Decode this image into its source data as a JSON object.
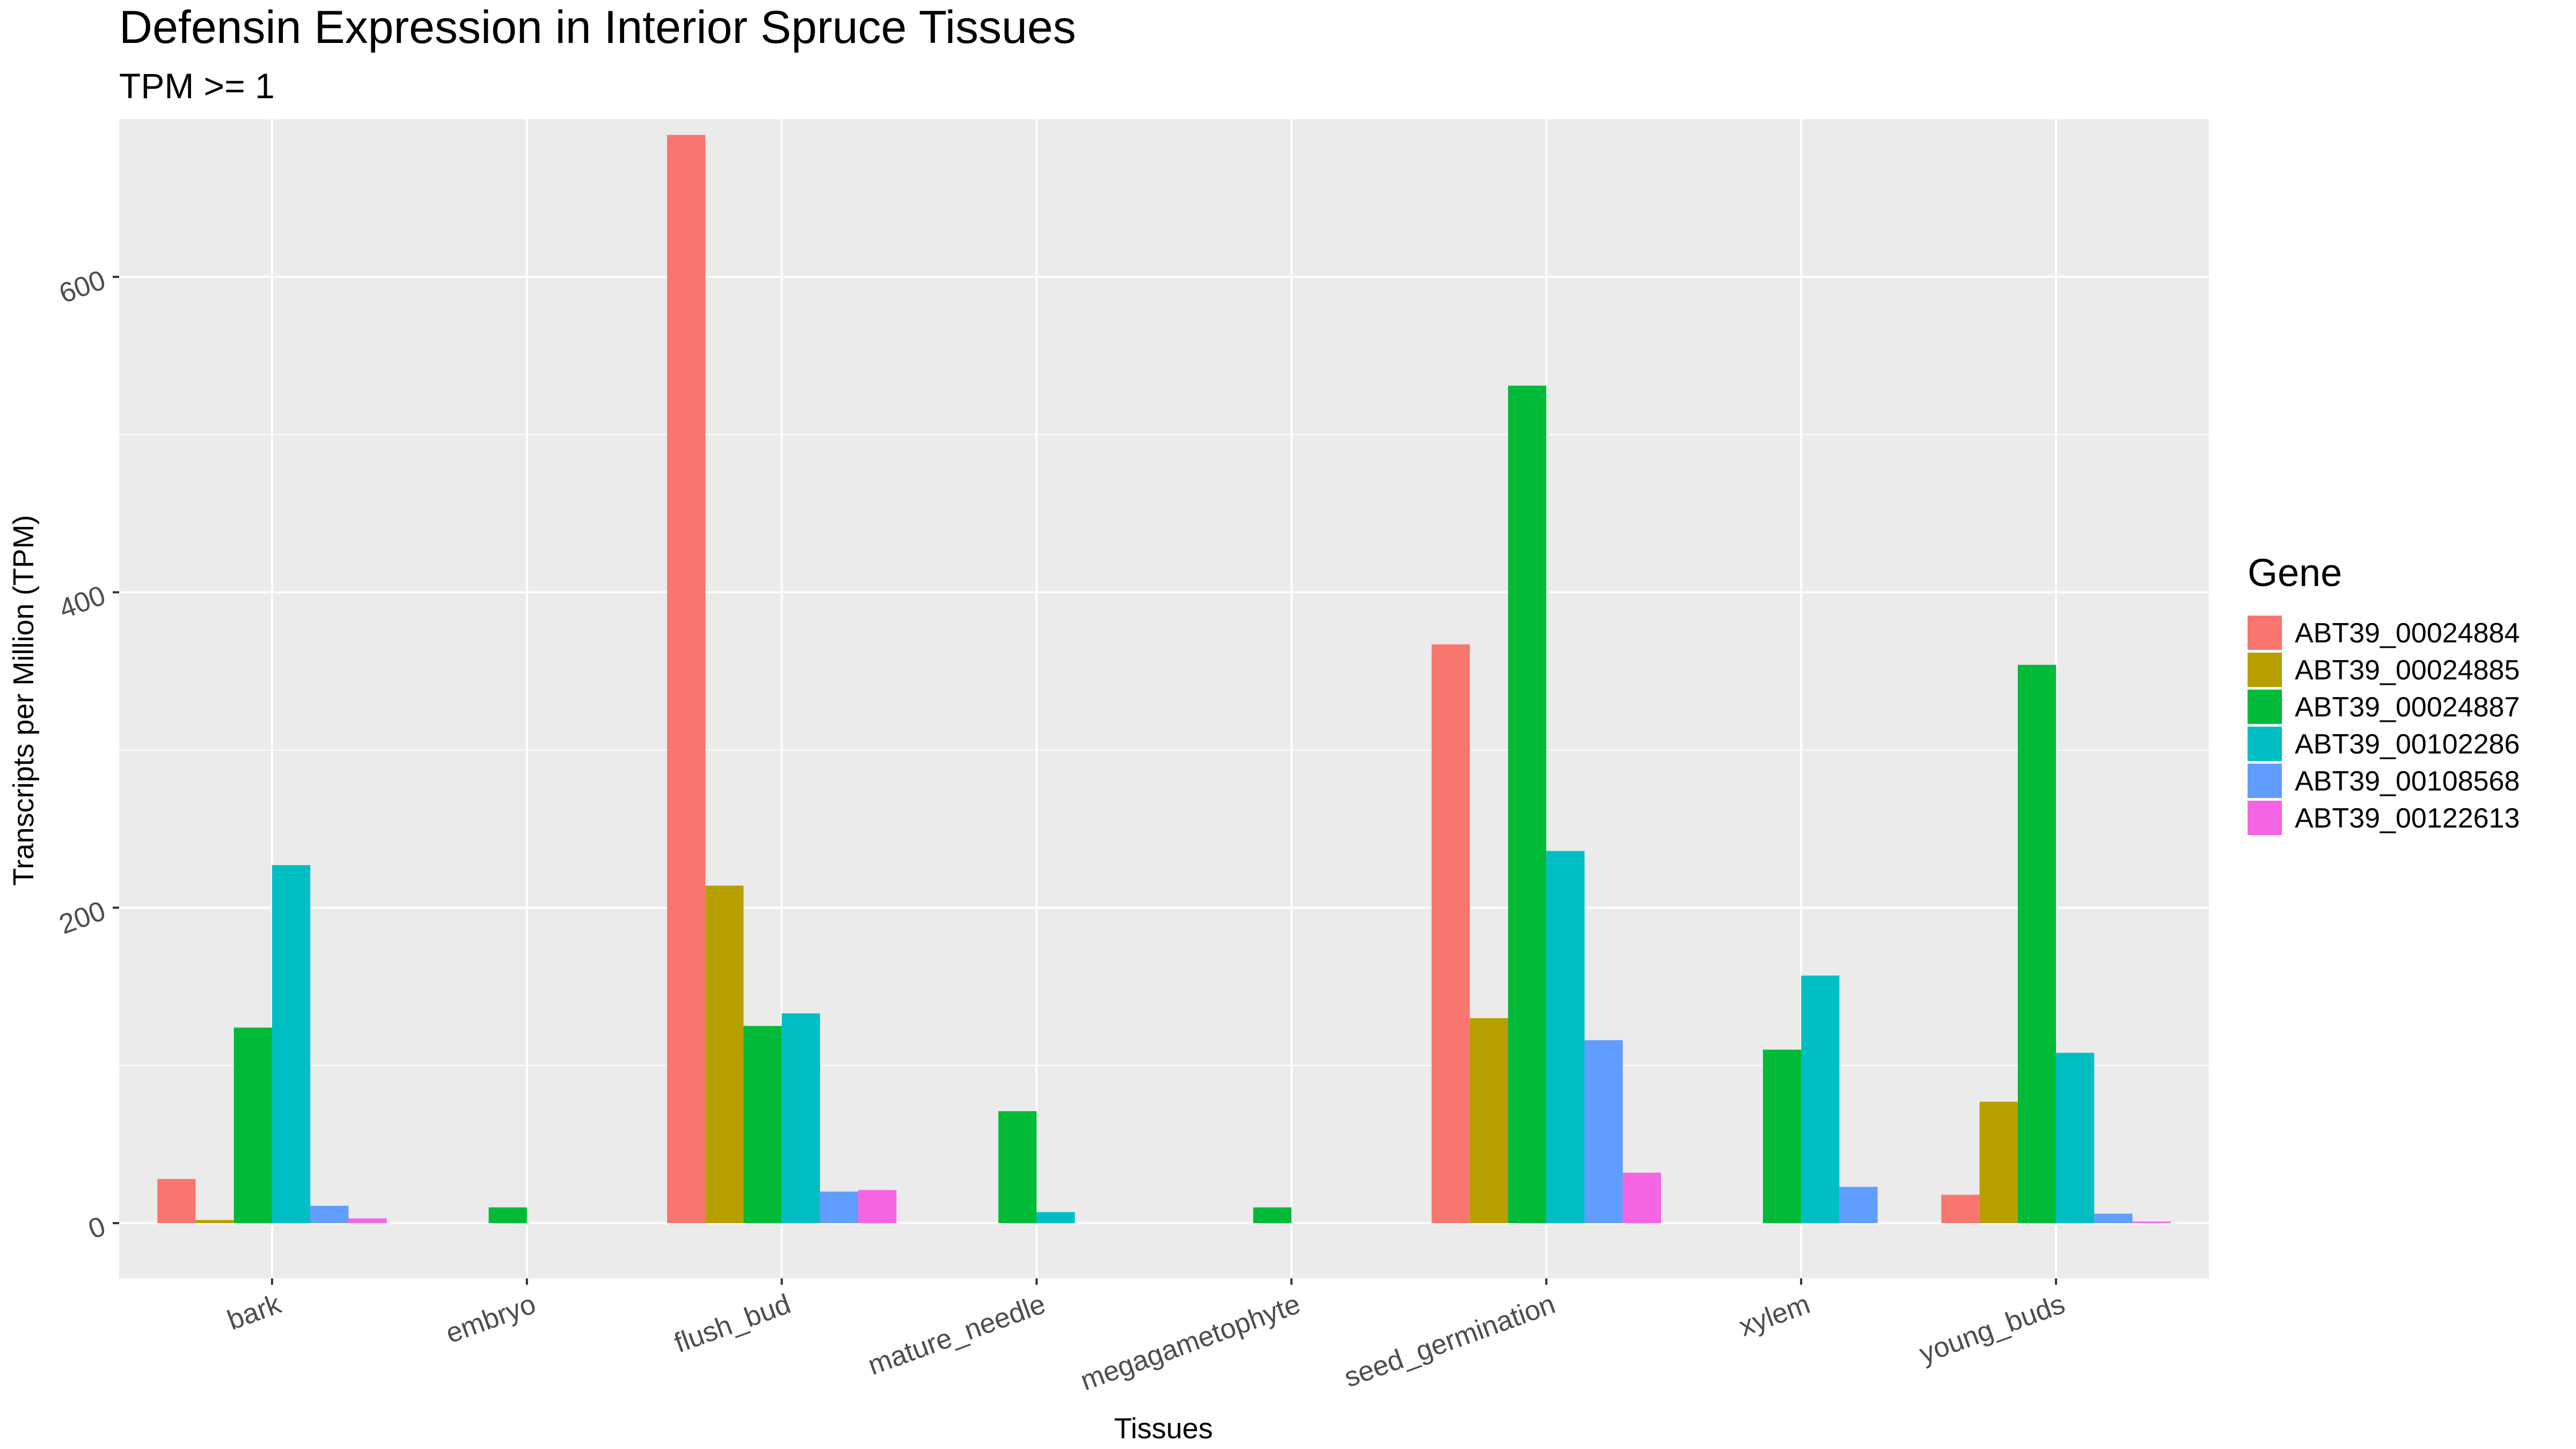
{
  "chart_data": {
    "type": "bar",
    "title": "Defensin Expression in Interior Spruce Tissues",
    "subtitle": "TPM >= 1",
    "xlabel": "Tissues",
    "ylabel": "Transcripts per Million (TPM)",
    "ylim": [
      -35,
      700
    ],
    "yticks": [
      0,
      200,
      400,
      600
    ],
    "grid": true,
    "legend_title": "Gene",
    "legend_position": "right",
    "categories": [
      "bark",
      "embryo",
      "flush_bud",
      "mature_needle",
      "megagametophyte",
      "seed_germination",
      "xylem",
      "young_buds"
    ],
    "series": [
      {
        "name": "ABT39_00024884",
        "color": "#F8766D",
        "values": [
          28,
          null,
          690,
          null,
          null,
          367,
          null,
          18
        ]
      },
      {
        "name": "ABT39_00024885",
        "color": "#B79F00",
        "values": [
          2,
          null,
          214,
          null,
          null,
          130,
          null,
          77
        ]
      },
      {
        "name": "ABT39_00024887",
        "color": "#00BA38",
        "values": [
          124,
          10,
          125,
          71,
          10,
          531,
          110,
          354
        ]
      },
      {
        "name": "ABT39_00102286",
        "color": "#00BFC4",
        "values": [
          227,
          null,
          133,
          7,
          null,
          236,
          157,
          108
        ]
      },
      {
        "name": "ABT39_00108568",
        "color": "#619CFF",
        "values": [
          11,
          null,
          20,
          null,
          null,
          116,
          23,
          6
        ]
      },
      {
        "name": "ABT39_00122613",
        "color": "#F564E3",
        "values": [
          3,
          null,
          21,
          null,
          null,
          32,
          null,
          1
        ]
      }
    ]
  },
  "colors": {
    "panel_background": "#EBEBEB",
    "grid_major": "#FFFFFF",
    "text": "#000000",
    "tick_text": "#4D4D4D"
  }
}
